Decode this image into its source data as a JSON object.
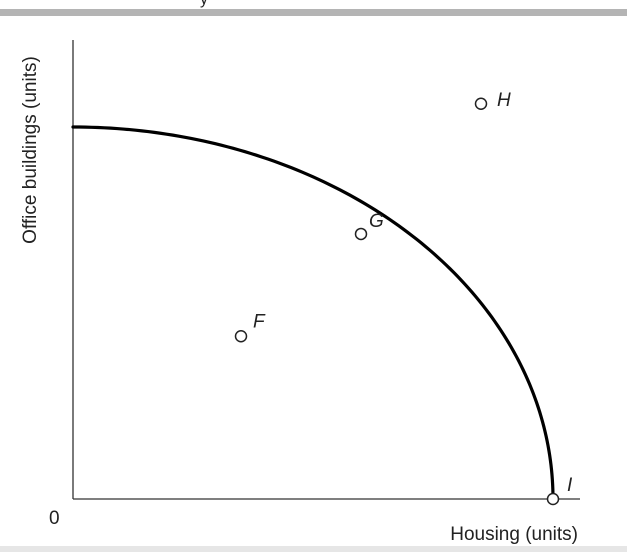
{
  "header": {
    "cropped_text": "y"
  },
  "chart_data": {
    "type": "line",
    "title": "",
    "xlabel": "Housing (units)",
    "ylabel": "Office buildings (units)",
    "origin_label": "0",
    "grid": false,
    "legend": "none",
    "curve_color": "#000000",
    "curve": {
      "description": "production possibilities frontier",
      "x": [
        0,
        0.1,
        0.2,
        0.3,
        0.4,
        0.5,
        0.6,
        0.7,
        0.8,
        0.9,
        0.95,
        1.0
      ],
      "y": [
        0.8,
        0.796,
        0.784,
        0.763,
        0.733,
        0.693,
        0.64,
        0.571,
        0.48,
        0.349,
        0.25,
        0
      ]
    },
    "points": [
      {
        "label": "F",
        "x": 0.35,
        "y": 0.35
      },
      {
        "label": "G",
        "x": 0.6,
        "y": 0.57
      },
      {
        "label": "H",
        "x": 0.85,
        "y": 0.85
      },
      {
        "label": "I",
        "x": 1.0,
        "y": 0
      }
    ]
  }
}
